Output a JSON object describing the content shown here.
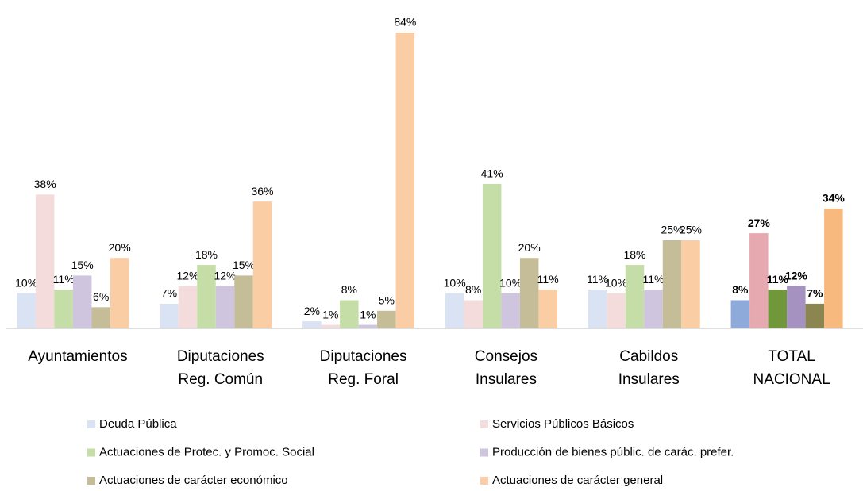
{
  "chart_data": {
    "type": "bar",
    "categories": [
      [
        "Ayuntamientos"
      ],
      [
        "Diputaciones",
        "Reg. Común"
      ],
      [
        "Diputaciones",
        "Reg. Foral"
      ],
      [
        "Consejos",
        "Insulares"
      ],
      [
        "Cabildos",
        "Insulares"
      ],
      [
        "TOTAL",
        "NACIONAL"
      ]
    ],
    "emphasis": [
      false,
      false,
      false,
      false,
      false,
      true
    ],
    "series": [
      {
        "name": "Deuda Pública",
        "color": "#dae3f3",
        "emphasis_color": "#8eaadb",
        "values": [
          10,
          7,
          2,
          10,
          11,
          8
        ],
        "value_labels": [
          "10%",
          "7%",
          "2%",
          "10%",
          "11%",
          "8%"
        ]
      },
      {
        "name": "Servicios Públicos Básicos",
        "color": "#f4dcdc",
        "emphasis_color": "#e6a9b0",
        "values": [
          38,
          12,
          1,
          8,
          10,
          27
        ],
        "value_labels": [
          "38%",
          "12%",
          "1%",
          "8%",
          "10%",
          "27%"
        ]
      },
      {
        "name": "Actuaciones de Protec. y Promoc. Social",
        "color": "#c5dea8",
        "emphasis_color": "#70983a",
        "values": [
          11,
          18,
          8,
          41,
          18,
          11
        ],
        "value_labels": [
          "11%",
          "18%",
          "8%",
          "41%",
          "18%",
          "11%"
        ]
      },
      {
        "name": "Producción de bienes públic. de carác. prefer.",
        "color": "#cfc5de",
        "emphasis_color": "#a592c0",
        "values": [
          15,
          12,
          1,
          10,
          11,
          12
        ],
        "value_labels": [
          "15%",
          "12%",
          "1%",
          "10%",
          "11%",
          "12%"
        ]
      },
      {
        "name": "Actuaciones de carácter económico",
        "color": "#c4bd97",
        "emphasis_color": "#8b8550",
        "values": [
          6,
          15,
          5,
          20,
          25,
          7
        ],
        "value_labels": [
          "6%",
          "15%",
          "5%",
          "20%",
          "25%",
          "7%"
        ]
      },
      {
        "name": "Actuaciones de carácter general",
        "color": "#fbcda5",
        "emphasis_color": "#f8b97f",
        "values": [
          20,
          36,
          84,
          11,
          25,
          34
        ],
        "value_labels": [
          "20%",
          "36%",
          "84%",
          "11%",
          "25%",
          "34%"
        ]
      }
    ]
  }
}
